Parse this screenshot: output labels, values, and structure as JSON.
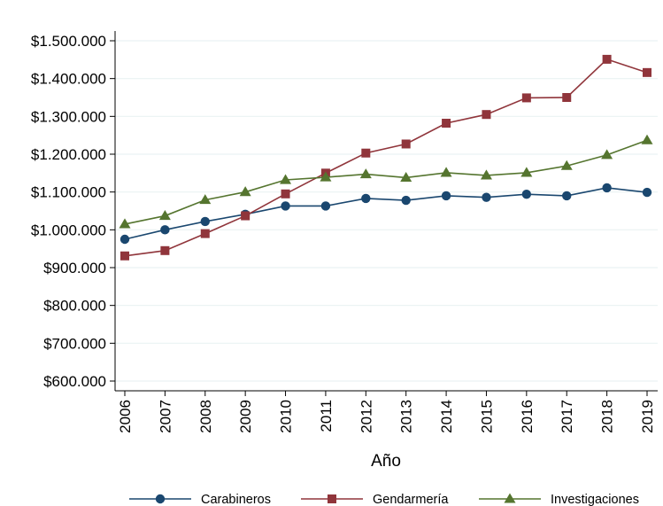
{
  "chart_data": {
    "type": "line",
    "title": "",
    "xlabel": "Año",
    "ylabel": "",
    "x": [
      2006,
      2007,
      2008,
      2009,
      2010,
      2011,
      2012,
      2013,
      2014,
      2015,
      2016,
      2017,
      2018,
      2019
    ],
    "x_tick_labels": [
      "2006",
      "2007",
      "2008",
      "2009",
      "2010",
      "2011",
      "2012",
      "2013",
      "2014",
      "2015",
      "2016",
      "2017",
      "2018",
      "2019"
    ],
    "ylim": [
      600000,
      1500000
    ],
    "y_ticks": [
      600000,
      700000,
      800000,
      900000,
      1000000,
      1100000,
      1200000,
      1300000,
      1400000,
      1500000
    ],
    "y_tick_labels": [
      "$600.000",
      "$700.000",
      "$800.000",
      "$900.000",
      "$1.000.000",
      "$1.100.000",
      "$1.200.000",
      "$1.300.000",
      "$1.400.000",
      "$1.500.000"
    ],
    "grid": true,
    "legend_position": "bottom",
    "series": [
      {
        "name": "Carabineros",
        "color": "#1a476f",
        "marker": "circle",
        "values": [
          975000,
          1000000,
          1022000,
          1041000,
          1063000,
          1063000,
          1083000,
          1078000,
          1090000,
          1086000,
          1094000,
          1090000,
          1111000,
          1099000
        ]
      },
      {
        "name": "Gendarmería",
        "color": "#90353b",
        "marker": "square",
        "values": [
          931000,
          945000,
          990000,
          1037000,
          1095000,
          1150000,
          1203000,
          1227000,
          1282000,
          1305000,
          1349000,
          1350000,
          1451000,
          1416000
        ]
      },
      {
        "name": "Investigaciones",
        "color": "#55752f",
        "marker": "triangle",
        "values": [
          1015000,
          1037000,
          1079000,
          1100000,
          1132000,
          1139000,
          1147000,
          1138000,
          1151000,
          1144000,
          1151000,
          1169000,
          1198000,
          1237000
        ]
      }
    ]
  }
}
